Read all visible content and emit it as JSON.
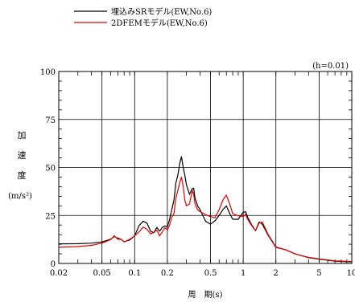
{
  "chart_data": {
    "type": "line",
    "annotation": "(h=0.01)",
    "ylabel_chars": [
      "加",
      "速",
      "度"
    ],
    "ylabel_unit": "(m/s²)",
    "xlabel": "周　期(s)",
    "x_scale": "log",
    "xlim": [
      0.02,
      10
    ],
    "ylim": [
      0,
      100
    ],
    "grid": true,
    "legend_placement": "top-left",
    "x_major_ticks": [
      {
        "value": 0.02,
        "label": "0.02"
      },
      {
        "value": 0.05,
        "label": "0.05"
      },
      {
        "value": 0.1,
        "label": "0.1"
      },
      {
        "value": 0.2,
        "label": "0.2"
      },
      {
        "value": 0.5,
        "label": "0.5"
      },
      {
        "value": 1,
        "label": "1"
      },
      {
        "value": 2,
        "label": "2"
      },
      {
        "value": 5,
        "label": "5"
      },
      {
        "value": 10,
        "label": "10"
      }
    ],
    "y_ticks": [
      {
        "value": 0,
        "label": "0"
      },
      {
        "value": 25,
        "label": "25"
      },
      {
        "value": 50,
        "label": "50"
      },
      {
        "value": 75,
        "label": "75"
      },
      {
        "value": 100,
        "label": "100"
      }
    ],
    "series": [
      {
        "name": "埋込みSRモデル(EW,No.6)",
        "color": "#000000",
        "points": [
          [
            0.02,
            10.2
          ],
          [
            0.03,
            10.3
          ],
          [
            0.04,
            10.6
          ],
          [
            0.05,
            11.2
          ],
          [
            0.06,
            12.6
          ],
          [
            0.065,
            14
          ],
          [
            0.07,
            13.2
          ],
          [
            0.075,
            12.6
          ],
          [
            0.08,
            11.4
          ],
          [
            0.09,
            12.2
          ],
          [
            0.1,
            14.4
          ],
          [
            0.11,
            19.8
          ],
          [
            0.12,
            22
          ],
          [
            0.13,
            21
          ],
          [
            0.14,
            16.8
          ],
          [
            0.15,
            16
          ],
          [
            0.16,
            18.8
          ],
          [
            0.17,
            16.8
          ],
          [
            0.18,
            18.8
          ],
          [
            0.19,
            19.6
          ],
          [
            0.2,
            19
          ],
          [
            0.21,
            23
          ],
          [
            0.22,
            28
          ],
          [
            0.23,
            33
          ],
          [
            0.24,
            42
          ],
          [
            0.25,
            46
          ],
          [
            0.26,
            52
          ],
          [
            0.27,
            55.6
          ],
          [
            0.28,
            50
          ],
          [
            0.29,
            46
          ],
          [
            0.3,
            41
          ],
          [
            0.32,
            36
          ],
          [
            0.34,
            39
          ],
          [
            0.35,
            39.2
          ],
          [
            0.36,
            34
          ],
          [
            0.38,
            30
          ],
          [
            0.4,
            28
          ],
          [
            0.45,
            22
          ],
          [
            0.5,
            20.4
          ],
          [
            0.55,
            22.2
          ],
          [
            0.6,
            25
          ],
          [
            0.65,
            28
          ],
          [
            0.7,
            30
          ],
          [
            0.75,
            26
          ],
          [
            0.8,
            23
          ],
          [
            0.9,
            23
          ],
          [
            1,
            26.6
          ],
          [
            1.05,
            27
          ],
          [
            1.1,
            24
          ],
          [
            1.2,
            20
          ],
          [
            1.3,
            17
          ],
          [
            1.4,
            21.6
          ],
          [
            1.5,
            20.4
          ],
          [
            1.7,
            14.6
          ],
          [
            2,
            8.4
          ],
          [
            2.5,
            7
          ],
          [
            3,
            5
          ],
          [
            4,
            3
          ],
          [
            5,
            2.2
          ],
          [
            7,
            1.2
          ],
          [
            10,
            0.8
          ]
        ]
      },
      {
        "name": "2DFEMモデル(EW,No.6)",
        "color": "#e60000",
        "points": [
          [
            0.02,
            8.4
          ],
          [
            0.03,
            8.8
          ],
          [
            0.04,
            9.4
          ],
          [
            0.05,
            10.6
          ],
          [
            0.06,
            12.4
          ],
          [
            0.065,
            14.4
          ],
          [
            0.07,
            12.6
          ],
          [
            0.075,
            12.6
          ],
          [
            0.08,
            11.2
          ],
          [
            0.09,
            12.6
          ],
          [
            0.1,
            14.4
          ],
          [
            0.11,
            16.4
          ],
          [
            0.12,
            19
          ],
          [
            0.13,
            17.8
          ],
          [
            0.14,
            15.4
          ],
          [
            0.15,
            16.2
          ],
          [
            0.16,
            17.4
          ],
          [
            0.17,
            14.4
          ],
          [
            0.18,
            16.4
          ],
          [
            0.19,
            18.6
          ],
          [
            0.2,
            17.4
          ],
          [
            0.21,
            20
          ],
          [
            0.22,
            24
          ],
          [
            0.23,
            26
          ],
          [
            0.24,
            34
          ],
          [
            0.25,
            38
          ],
          [
            0.26,
            42
          ],
          [
            0.27,
            45
          ],
          [
            0.28,
            40
          ],
          [
            0.29,
            33
          ],
          [
            0.3,
            30
          ],
          [
            0.32,
            31
          ],
          [
            0.34,
            38
          ],
          [
            0.35,
            36
          ],
          [
            0.36,
            31
          ],
          [
            0.38,
            28
          ],
          [
            0.4,
            27
          ],
          [
            0.45,
            25.4
          ],
          [
            0.5,
            24.4
          ],
          [
            0.55,
            23.8
          ],
          [
            0.6,
            28
          ],
          [
            0.65,
            33
          ],
          [
            0.7,
            35.6
          ],
          [
            0.75,
            31
          ],
          [
            0.8,
            26
          ],
          [
            0.9,
            24.8
          ],
          [
            1,
            24.4
          ],
          [
            1.05,
            25.6
          ],
          [
            1.1,
            23
          ],
          [
            1.2,
            19.6
          ],
          [
            1.3,
            17
          ],
          [
            1.4,
            21
          ],
          [
            1.5,
            21.6
          ],
          [
            1.7,
            15
          ],
          [
            2,
            8.6
          ],
          [
            2.5,
            7
          ],
          [
            3,
            5
          ],
          [
            4,
            3.2
          ],
          [
            5,
            2.4
          ],
          [
            7,
            1.4
          ],
          [
            10,
            1
          ]
        ]
      }
    ]
  }
}
